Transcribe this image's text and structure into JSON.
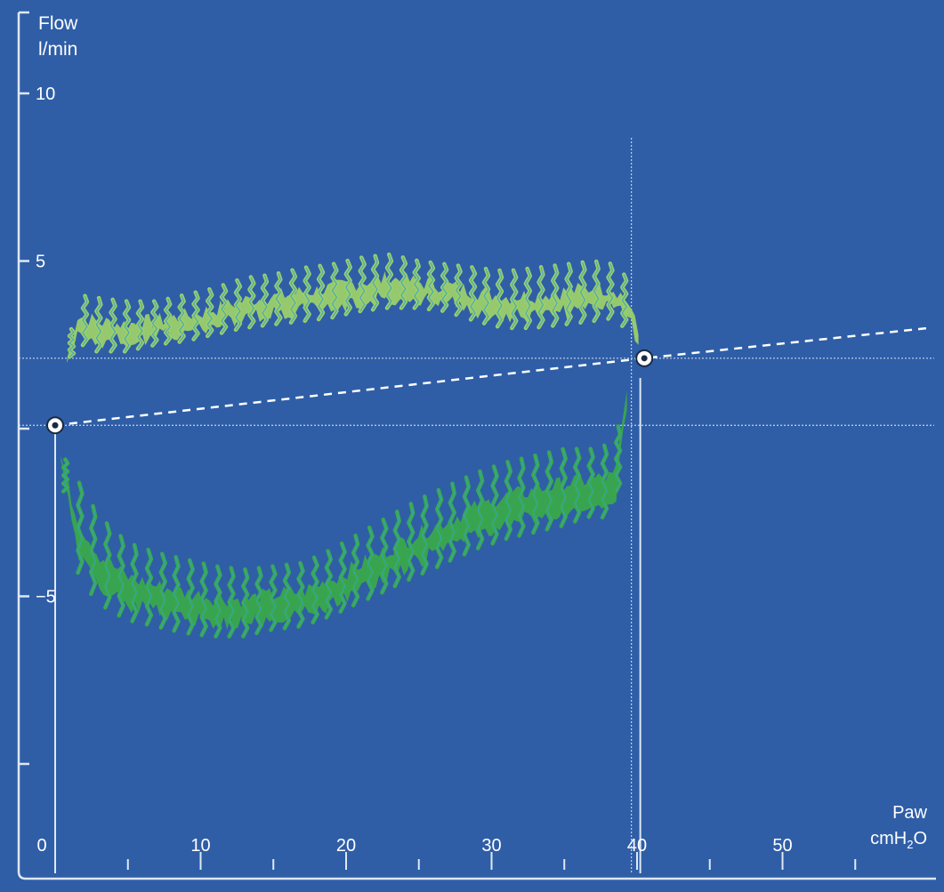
{
  "chart_data": {
    "type": "line",
    "title": "",
    "ylabel": "Flow",
    "yunit": "l/min",
    "xlabel": "Paw",
    "xunit_base": "cmH",
    "xunit_sub": "2",
    "xunit_tail": "O",
    "xlim": [
      0,
      60
    ],
    "ylim": [
      -10,
      12
    ],
    "xticks": [
      0,
      10,
      20,
      30,
      40,
      50
    ],
    "xtick_labels": [
      "0",
      "10",
      "20",
      "30",
      "40",
      "50"
    ],
    "xticks_minor": [
      5,
      15,
      25,
      35,
      45,
      55
    ],
    "yticks_labeled": [
      10,
      5,
      -5
    ],
    "ytick_labels": [
      "10",
      "5",
      "−5"
    ],
    "yticks_unlabeled": [
      0,
      -10
    ],
    "grid": false,
    "reference_lines": {
      "horizontal": [
        2.1,
        0.1
      ],
      "vertical": [
        40.1
      ]
    },
    "markers": [
      {
        "x": 0.0,
        "y": 0.1
      },
      {
        "x": 40.5,
        "y": 2.1
      }
    ],
    "dashed_line": [
      [
        0.0,
        0.1
      ],
      [
        40.5,
        2.1
      ],
      [
        60.0,
        3.0
      ]
    ],
    "series": [
      {
        "color": "#9ccf6a",
        "x": [
          0.8,
          1.5,
          3,
          5,
          7,
          9,
          11,
          13,
          15,
          17,
          19,
          21,
          23,
          25,
          27,
          29,
          31,
          33,
          35,
          37,
          38.5,
          39.5,
          40.1
        ],
        "y_upper": [
          2.2,
          4.0,
          3.9,
          3.8,
          3.8,
          4.0,
          4.2,
          4.5,
          4.6,
          4.8,
          4.9,
          5.1,
          5.2,
          5.0,
          4.9,
          4.8,
          4.7,
          4.8,
          4.9,
          5.0,
          4.9,
          4.4,
          3.1
        ],
        "y_lower": [
          1.8,
          2.6,
          2.3,
          2.3,
          2.5,
          2.6,
          2.8,
          3.0,
          3.1,
          3.2,
          3.3,
          3.5,
          3.6,
          3.6,
          3.5,
          3.2,
          3.0,
          3.0,
          3.1,
          3.2,
          3.3,
          2.9,
          2.4
        ]
      },
      {
        "color": "#3aa84a",
        "x": [
          0.4,
          1.5,
          3,
          5,
          7,
          9,
          11,
          13,
          15,
          17,
          19,
          21,
          23,
          25,
          27,
          29,
          31,
          33,
          35,
          37,
          38.5,
          39.3
        ],
        "y_upper": [
          -0.7,
          -1.5,
          -2.6,
          -3.4,
          -3.7,
          -3.9,
          -4.1,
          -4.2,
          -4.1,
          -4.0,
          -3.6,
          -3.1,
          -2.6,
          -2.1,
          -1.7,
          -1.3,
          -1.0,
          -0.8,
          -0.6,
          -0.6,
          -0.4,
          1.5
        ],
        "y_lower": [
          -1.0,
          -4.2,
          -5.2,
          -5.7,
          -5.9,
          -6.1,
          -6.2,
          -6.2,
          -6.0,
          -5.9,
          -5.6,
          -5.2,
          -4.8,
          -4.4,
          -4.0,
          -3.6,
          -3.3,
          -3.1,
          -2.9,
          -2.6,
          -2.7,
          0.6
        ]
      }
    ]
  }
}
